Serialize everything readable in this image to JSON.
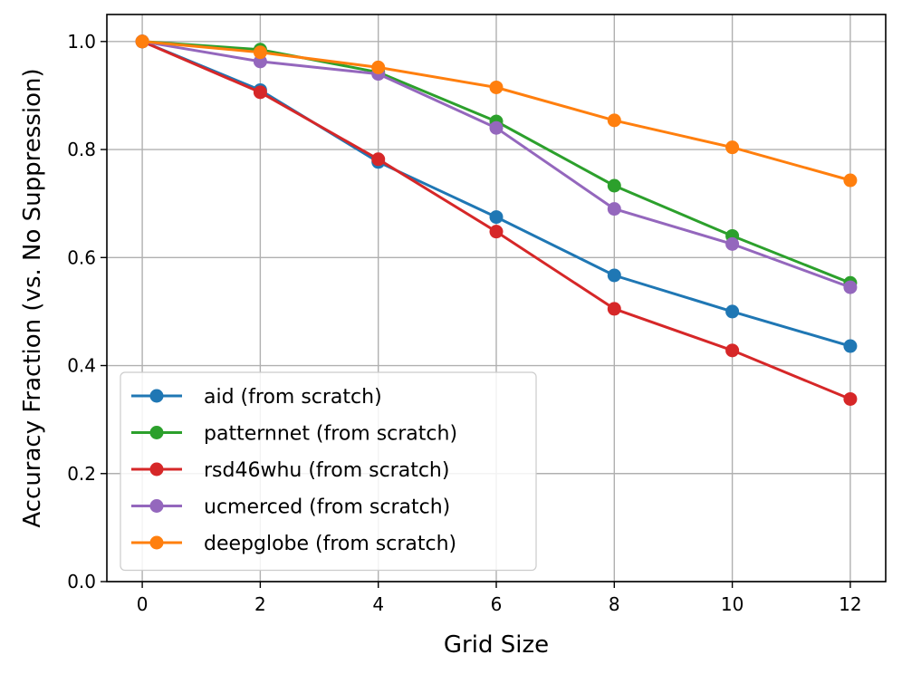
{
  "chart_data": {
    "type": "line",
    "title": "",
    "xlabel": "Grid Size",
    "ylabel": "Accuracy Fraction (vs. No Suppression)",
    "x": [
      0,
      2,
      4,
      6,
      8,
      10,
      12
    ],
    "xlim": [
      -0.6,
      12.6
    ],
    "ylim": [
      0.0,
      1.05
    ],
    "xticks": [
      0,
      2,
      4,
      6,
      8,
      10,
      12
    ],
    "yticks": [
      0.0,
      0.2,
      0.4,
      0.6,
      0.8,
      1.0
    ],
    "xtick_labels": [
      "0",
      "2",
      "4",
      "6",
      "8",
      "10",
      "12"
    ],
    "ytick_labels": [
      "0.0",
      "0.2",
      "0.4",
      "0.6",
      "0.8",
      "1.0"
    ],
    "grid": true,
    "legend_position": "lower-left",
    "series": [
      {
        "name": "aid (from scratch)",
        "color": "#1f77b4",
        "values": [
          1.0,
          0.91,
          0.777,
          0.675,
          0.567,
          0.5,
          0.436
        ]
      },
      {
        "name": "patternnet (from scratch)",
        "color": "#2ca02c",
        "values": [
          1.0,
          0.985,
          0.943,
          0.852,
          0.733,
          0.64,
          0.553
        ]
      },
      {
        "name": "rsd46whu (from scratch)",
        "color": "#d62728",
        "values": [
          1.0,
          0.906,
          0.782,
          0.648,
          0.505,
          0.428,
          0.338
        ]
      },
      {
        "name": "ucmerced (from scratch)",
        "color": "#9467bd",
        "values": [
          1.0,
          0.963,
          0.94,
          0.84,
          0.69,
          0.625,
          0.545
        ]
      },
      {
        "name": "deepglobe (from scratch)",
        "color": "#ff7f0e",
        "values": [
          1.0,
          0.98,
          0.952,
          0.915,
          0.854,
          0.804,
          0.743
        ]
      }
    ]
  }
}
